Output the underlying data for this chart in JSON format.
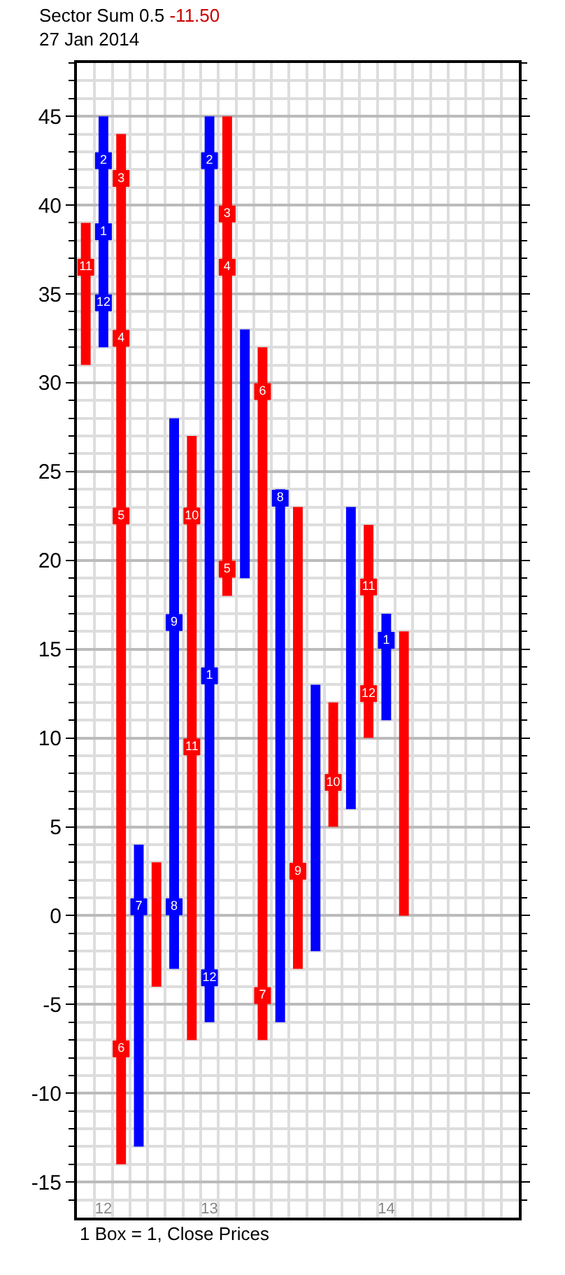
{
  "chart_data": {
    "type": "bar",
    "title": "Sector Sum 0.5 -11.50",
    "subtitle": "27 Jan 2014",
    "categories": [
      null,
      "12",
      null,
      null,
      null,
      null,
      null,
      "13",
      null,
      null,
      null,
      null,
      null,
      null,
      null,
      null,
      null,
      "14",
      null,
      null,
      null,
      null,
      null,
      null,
      null
    ],
    "ylim": [
      -17,
      48
    ],
    "yticks": [
      -15,
      -10,
      -5,
      0,
      5,
      10,
      15,
      20,
      25,
      30,
      35,
      40,
      45
    ],
    "grid": true,
    "marker": "square",
    "series": [
      {
        "color": "#ff0000",
        "base": [
          31,
          null,
          -14,
          null,
          -4,
          null,
          -7,
          null,
          18,
          null,
          -7,
          null,
          -3,
          null,
          5,
          null,
          10,
          null,
          0,
          null,
          null,
          null,
          null,
          null,
          null
        ],
        "values": [
          8,
          null,
          58,
          null,
          7,
          null,
          34,
          null,
          27,
          null,
          39,
          null,
          26,
          null,
          7,
          null,
          12,
          null,
          16,
          null,
          null,
          null,
          null,
          null,
          null
        ]
      },
      {
        "color": "#0000ff",
        "base": [
          null,
          32,
          null,
          -13,
          null,
          -3,
          null,
          -6,
          null,
          19,
          null,
          -6,
          null,
          -2,
          null,
          6,
          null,
          11,
          null,
          null,
          null,
          null,
          null,
          null,
          null
        ],
        "values": [
          null,
          13,
          null,
          17,
          null,
          31,
          null,
          51,
          null,
          14,
          null,
          30,
          null,
          15,
          null,
          17,
          null,
          6,
          null,
          null,
          null,
          null,
          null,
          null,
          null
        ]
      },
      {
        "type": "scatter",
        "name": "1",
        "color": "#0000ff",
        "values": [
          null,
          38.5,
          null,
          null,
          null,
          null,
          null,
          13.5,
          null,
          null,
          null,
          null,
          null,
          null,
          null,
          null,
          null,
          15.5,
          null,
          null,
          null,
          null,
          null,
          null,
          null
        ]
      },
      {
        "type": "scatter",
        "name": "2",
        "color": "#0000ff",
        "values": [
          null,
          42.5,
          null,
          null,
          null,
          null,
          null,
          42.5,
          null,
          null,
          null,
          null,
          null,
          null,
          null,
          null,
          null,
          null,
          null,
          null,
          null,
          null,
          null,
          null,
          null
        ]
      },
      {
        "type": "scatter",
        "name": "3",
        "color": "#ff0000",
        "values": [
          null,
          null,
          41.5,
          null,
          null,
          null,
          null,
          null,
          39.5,
          null,
          null,
          null,
          null,
          null,
          null,
          null,
          null,
          null,
          null,
          null,
          null,
          null,
          null,
          null,
          null
        ]
      },
      {
        "type": "scatter",
        "name": "4",
        "color": "#ff0000",
        "values": [
          null,
          null,
          32.5,
          null,
          null,
          null,
          null,
          null,
          36.5,
          null,
          null,
          null,
          null,
          null,
          null,
          null,
          null,
          null,
          null,
          null,
          null,
          null,
          null,
          null,
          null
        ]
      },
      {
        "type": "scatter",
        "name": "5",
        "color": "#ff0000",
        "values": [
          null,
          null,
          22.5,
          null,
          null,
          null,
          null,
          null,
          19.5,
          null,
          null,
          null,
          null,
          null,
          null,
          null,
          null,
          null,
          null,
          null,
          null,
          null,
          null,
          null,
          null
        ]
      },
      {
        "type": "scatter",
        "name": "6",
        "color": "#ff0000",
        "values": [
          null,
          null,
          -7.5,
          null,
          null,
          null,
          null,
          null,
          null,
          null,
          29.5,
          null,
          null,
          null,
          null,
          null,
          null,
          null,
          null,
          null,
          null,
          null,
          null,
          null,
          null
        ]
      },
      {
        "type": "scatter",
        "name": "7",
        "colors": [
          null,
          null,
          null,
          "#0000ff",
          null,
          null,
          null,
          null,
          null,
          null,
          "#ff0000",
          null,
          null,
          null,
          null,
          null,
          null,
          null,
          null,
          null,
          null,
          null,
          null,
          null,
          null
        ],
        "values": [
          null,
          null,
          null,
          0.5,
          null,
          null,
          null,
          null,
          null,
          null,
          -4.5,
          null,
          null,
          null,
          null,
          null,
          null,
          null,
          null,
          null,
          null,
          null,
          null,
          null,
          null
        ]
      },
      {
        "type": "scatter",
        "name": "8",
        "color": "#0000ff",
        "values": [
          null,
          null,
          null,
          null,
          null,
          0.5,
          null,
          null,
          null,
          null,
          null,
          23.5,
          null,
          null,
          null,
          null,
          null,
          null,
          null,
          null,
          null,
          null,
          null,
          null,
          null
        ]
      },
      {
        "type": "scatter",
        "name": "9",
        "colors": [
          null,
          null,
          null,
          null,
          null,
          "#0000ff",
          null,
          null,
          null,
          null,
          null,
          null,
          "#ff0000",
          null,
          null,
          null,
          null,
          null,
          null,
          null,
          null,
          null,
          null,
          null,
          null
        ],
        "values": [
          null,
          null,
          null,
          null,
          null,
          16.5,
          null,
          null,
          null,
          null,
          null,
          null,
          2.5,
          null,
          null,
          null,
          null,
          null,
          null,
          null,
          null,
          null,
          null,
          null,
          null
        ]
      },
      {
        "type": "scatter",
        "name": "10",
        "color": "#ff0000",
        "values": [
          null,
          null,
          null,
          null,
          null,
          null,
          22.5,
          null,
          null,
          null,
          null,
          null,
          null,
          null,
          7.5,
          null,
          null,
          null,
          null,
          null,
          null,
          null,
          null,
          null,
          null
        ]
      },
      {
        "type": "scatter",
        "name": "11",
        "color": "#ff0000",
        "values": [
          36.5,
          null,
          null,
          null,
          null,
          null,
          9.5,
          null,
          null,
          null,
          null,
          null,
          null,
          null,
          null,
          null,
          18.5,
          null,
          null,
          null,
          null,
          null,
          null,
          null,
          null
        ]
      },
      {
        "type": "scatter",
        "name": "12",
        "colors": [
          null,
          "#0000ff",
          null,
          null,
          null,
          null,
          null,
          "#0000ff",
          null,
          null,
          null,
          null,
          null,
          null,
          null,
          null,
          "#ff0000",
          null,
          null,
          null,
          null,
          null,
          null,
          null,
          null
        ],
        "values": [
          null,
          34.5,
          null,
          null,
          null,
          null,
          null,
          -3.5,
          null,
          null,
          null,
          null,
          null,
          null,
          null,
          null,
          12.5,
          null,
          null,
          null,
          null,
          null,
          null,
          null,
          null
        ]
      }
    ],
    "annotations": [
      "1 Box = 1, Close Prices"
    ]
  }
}
